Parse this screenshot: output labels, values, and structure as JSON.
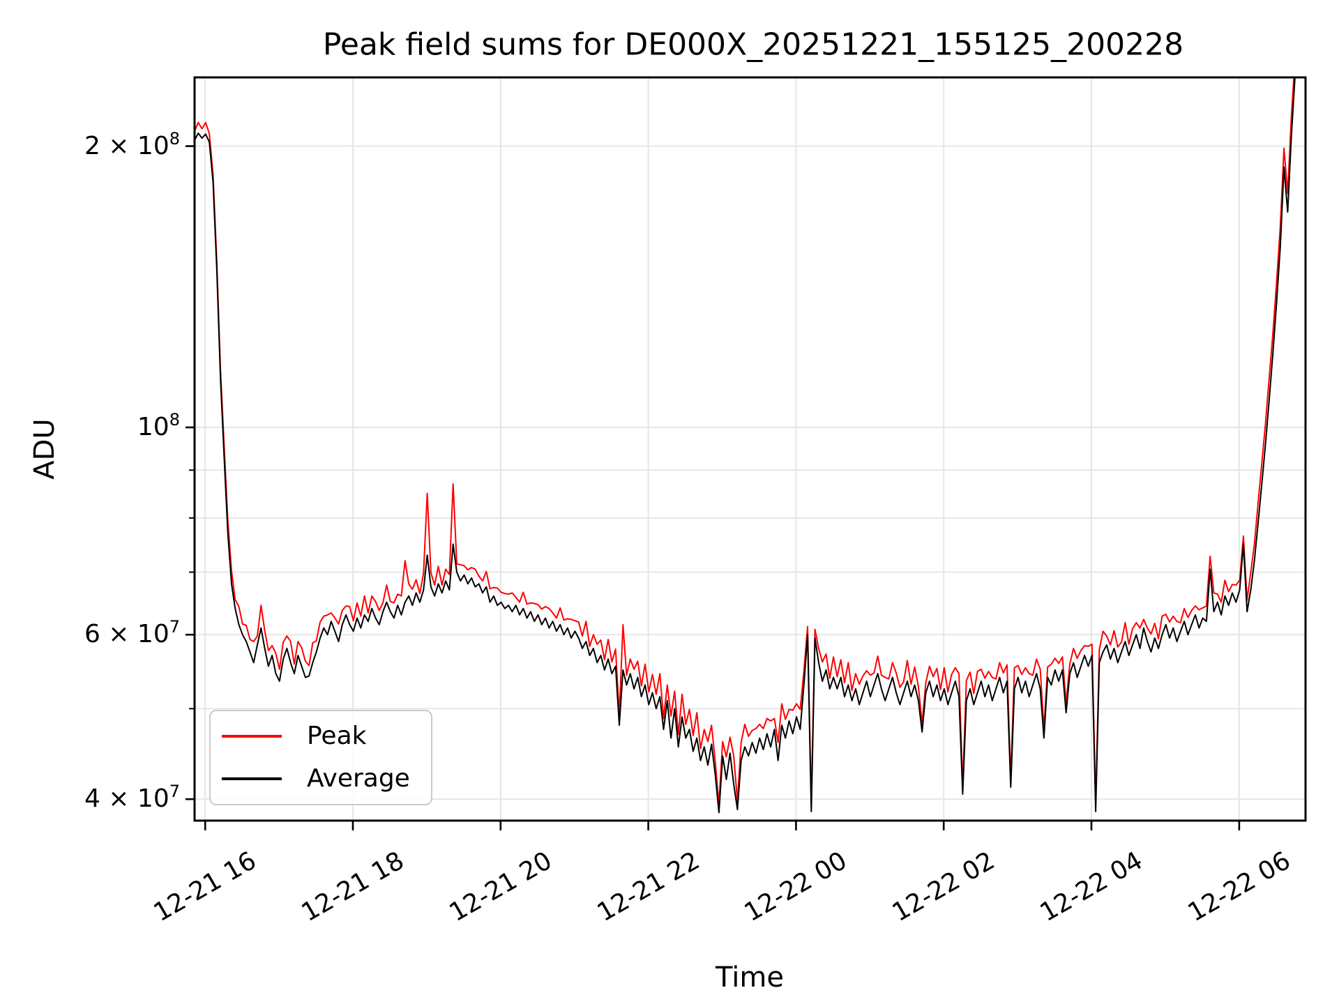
{
  "chart_data": {
    "type": "line",
    "title": "Peak field sums for DE000X_20251221_155125_200228",
    "xlabel": "Time",
    "ylabel": "ADU",
    "y_scale": "log",
    "grid": true,
    "legend_position": "lower left",
    "value_unit_note": "series values are ADU in millions (1e6)",
    "x_start_time": "12-21 15:51",
    "t_step_min": 3,
    "xlim_minutes": [
      0,
      902.5
    ],
    "ylim_millions": [
      37.9,
      236.9
    ],
    "x_ticks": [
      {
        "t": 8.6,
        "label": "12-21 16"
      },
      {
        "t": 128.6,
        "label": "12-21 18"
      },
      {
        "t": 248.6,
        "label": "12-21 20"
      },
      {
        "t": 368.6,
        "label": "12-21 22"
      },
      {
        "t": 488.6,
        "label": "12-22 00"
      },
      {
        "t": 608.6,
        "label": "12-22 02"
      },
      {
        "t": 728.6,
        "label": "12-22 04"
      },
      {
        "t": 848.6,
        "label": "12-22 06"
      }
    ],
    "y_ticks_major": [
      {
        "v": 200,
        "base": "2 × 10",
        "exp": "8"
      },
      {
        "v": 100,
        "base": "10",
        "exp": "8"
      },
      {
        "v": 60,
        "base": "6 × 10",
        "exp": "7"
      },
      {
        "v": 40,
        "base": "4 × 10",
        "exp": "7"
      }
    ],
    "y_ticks_minor": [
      90,
      80,
      70,
      50
    ],
    "series": [
      {
        "name": "Peak",
        "color": "#ff0000",
        "values": [
          207.5,
          212,
          208.8,
          212,
          206.2,
          186.5,
          151,
          115.5,
          95.5,
          79.5,
          70.2,
          65.4,
          64.3,
          61.6,
          61.4,
          59.3,
          59,
          59.8,
          64.5,
          60.6,
          57.7,
          58.4,
          57.3,
          55.1,
          58.9,
          59.8,
          59,
          55.8,
          59,
          58.1,
          56.2,
          55.6,
          58.8,
          59.1,
          61.9,
          62.8,
          63,
          63.3,
          62.5,
          61.6,
          63.7,
          64.4,
          64.3,
          62.1,
          64.9,
          62.8,
          66,
          63.3,
          66,
          65.1,
          63.7,
          64.9,
          67.8,
          65.1,
          64.9,
          66.3,
          66,
          72,
          68,
          67.1,
          68.7,
          66.4,
          69.8,
          85,
          69.9,
          67.8,
          71,
          67.8,
          70.5,
          69.6,
          87,
          71.4,
          71.3,
          71.1,
          70.4,
          70.8,
          70.5,
          69.3,
          68.5,
          70.1,
          67.2,
          67.4,
          67.3,
          66.6,
          66.4,
          66.3,
          66.5,
          65.8,
          65,
          66.6,
          64.7,
          64.9,
          64.8,
          64.6,
          63.9,
          64.3,
          64,
          63.3,
          62.5,
          64.1,
          62.2,
          62.4,
          62.3,
          62.1,
          61.9,
          59.8,
          62,
          58.3,
          60,
          58.6,
          59.2,
          56.4,
          59.3,
          56.1,
          57.9,
          49.2,
          61.5,
          54.3,
          56.5,
          55.1,
          56.2,
          52.9,
          55.8,
          52.1,
          54.4,
          51.8,
          54.5,
          48.8,
          53,
          49.1,
          52.2,
          46.9,
          51.8,
          48.1,
          49.9,
          46.8,
          49.5,
          45.3,
          47.5,
          46.1,
          48,
          43.9,
          39.5,
          46.1,
          44.4,
          46.6,
          44.5,
          39.8,
          46,
          48.1,
          46.7,
          47.4,
          47.6,
          48.1,
          47.6,
          48.8,
          48.5,
          48.8,
          46,
          50.6,
          48.7,
          49.9,
          49.8,
          50.6,
          49.9,
          54.8,
          61.2,
          39.6,
          60.8,
          58,
          56.1,
          57.2,
          53.9,
          56.8,
          54.1,
          56.4,
          53.3,
          56,
          52.3,
          54.5,
          53.1,
          54.2,
          54.9,
          54.3,
          54.6,
          56.9,
          54.3,
          54,
          53.8,
          56,
          54.6,
          52.7,
          53.4,
          56.3,
          53.1,
          55.4,
          52.8,
          48.2,
          53.3,
          55.5,
          54.1,
          55.2,
          52.4,
          55.3,
          52.1,
          54.4,
          55.3,
          54.5,
          41.3,
          53.6,
          54.7,
          51.9,
          54.8,
          55.1,
          53.9,
          54.8,
          54,
          53.8,
          56,
          54.6,
          55.7,
          42,
          55.3,
          55.6,
          54.4,
          55.3,
          54.5,
          54.3,
          56.5,
          55.1,
          47.5,
          55.4,
          55.8,
          56.6,
          55.9,
          56.8,
          50.7,
          55.8,
          58,
          56.6,
          57.7,
          58.4,
          58.3,
          58.6,
          39.6,
          57.8,
          60.5,
          59.8,
          58.5,
          60.6,
          58.2,
          58.9,
          61.8,
          58.6,
          60.9,
          61.8,
          61,
          62.3,
          61,
          60.1,
          61.7,
          59.4,
          62.8,
          63.1,
          61.9,
          62.8,
          62,
          61.8,
          64,
          62.6,
          63.7,
          64.4,
          63.8,
          64.1,
          64.4,
          72.8,
          66.5,
          66.3,
          65,
          68.6,
          66.7,
          67.9,
          67.8,
          68.6,
          76.5,
          65.3,
          70,
          75,
          83,
          91.5,
          101,
          113,
          126,
          143,
          164,
          199,
          178,
          215,
          249,
          287,
          326
        ]
      },
      {
        "name": "Average",
        "color": "#000000",
        "values": [
          203,
          206.5,
          204,
          206,
          202,
          183,
          148,
          113,
          93,
          77,
          68,
          64,
          61.5,
          60,
          59,
          57.5,
          56,
          58.5,
          61,
          58,
          55.5,
          57,
          54.5,
          53.5,
          56.5,
          58,
          56,
          54.5,
          57,
          55.5,
          54,
          54.2,
          56,
          57.5,
          59.5,
          61,
          60,
          62,
          60.5,
          59,
          61.5,
          63,
          61.5,
          60.5,
          62.5,
          61,
          63,
          62,
          64,
          62.5,
          61.5,
          63.5,
          65,
          63.5,
          62.5,
          64.5,
          63,
          65,
          66,
          64.5,
          66.5,
          65,
          67,
          73,
          67.5,
          66,
          68,
          66.5,
          68.5,
          67,
          75,
          70,
          68.5,
          69.5,
          68,
          69,
          67.5,
          68,
          66.5,
          67.5,
          65,
          66,
          64.5,
          65,
          64,
          64.5,
          63.5,
          64.5,
          63,
          64,
          62.5,
          63.5,
          62,
          63,
          61.5,
          62.5,
          61,
          62,
          60.5,
          61.5,
          60,
          61,
          59.5,
          60.5,
          59.5,
          58,
          59,
          57,
          58,
          56,
          57,
          55,
          56.5,
          54.5,
          55.5,
          48,
          55,
          53,
          54.5,
          52.5,
          54,
          51.5,
          53,
          50.5,
          52,
          50,
          51.5,
          47.5,
          51,
          46.5,
          50,
          45.5,
          49,
          46.5,
          47.5,
          45,
          46.5,
          44,
          45.5,
          43.5,
          45.8,
          42.5,
          38.7,
          44.5,
          42,
          44.8,
          41.5,
          39,
          44,
          45.5,
          44.5,
          46,
          44.8,
          46.5,
          45.2,
          47,
          45.5,
          47.5,
          44,
          48,
          46.5,
          48.5,
          47,
          49,
          47.5,
          53,
          60,
          38.8,
          59.5,
          56,
          53.5,
          55,
          52.5,
          54,
          52.5,
          54,
          51.5,
          53,
          51,
          52.5,
          50.5,
          52,
          53.5,
          51.5,
          53,
          54.5,
          52.5,
          51,
          52.5,
          54,
          52,
          50.5,
          52,
          53.5,
          51.5,
          53,
          51,
          47.2,
          52,
          53.5,
          51.5,
          53,
          51,
          52.5,
          50.5,
          52,
          53.5,
          51.5,
          40.5,
          51,
          52.5,
          50.5,
          52,
          53.5,
          51.5,
          53,
          51,
          52.5,
          54,
          52,
          53.5,
          41.2,
          52.5,
          54,
          52,
          53.5,
          51.5,
          53,
          54.5,
          52.5,
          46.5,
          54,
          53,
          55,
          53.5,
          55,
          49.5,
          54.5,
          56,
          54,
          55.5,
          57,
          55.5,
          57,
          38.8,
          56,
          57.5,
          58.5,
          56.5,
          58,
          56,
          57.5,
          59,
          57,
          58.5,
          60,
          58,
          61,
          59,
          57.5,
          59.5,
          58,
          60,
          61.5,
          59.5,
          61,
          59,
          60.5,
          62,
          60,
          61.5,
          63,
          61,
          62.5,
          62,
          70.5,
          63.5,
          65,
          63,
          66,
          64.5,
          66.5,
          65,
          67,
          75,
          63.5,
          67,
          72,
          79,
          87,
          96,
          107,
          120,
          136,
          156,
          190,
          170,
          205,
          238,
          275,
          312
        ]
      }
    ]
  }
}
